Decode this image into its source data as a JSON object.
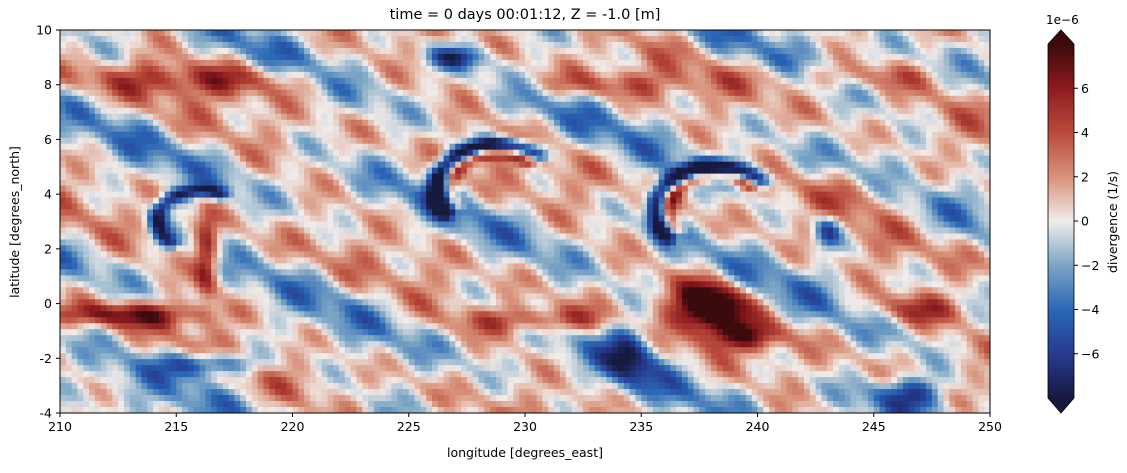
{
  "chart_data": {
    "type": "heatmap",
    "title": "time = 0 days 00:01:12, Z = -1.0 [m]",
    "xlabel": "longitude [degrees_east]",
    "ylabel": "latitude [degrees_north]",
    "xlim": [
      210,
      250
    ],
    "ylim": [
      -4,
      10
    ],
    "x_ticks": [
      "210",
      "215",
      "220",
      "225",
      "230",
      "235",
      "240",
      "245",
      "250"
    ],
    "y_ticks": [
      "-4",
      "-2",
      "0",
      "2",
      "4",
      "6",
      "8",
      "10"
    ],
    "colorbar": {
      "label": "divergence (1/s)",
      "scale_label": "1e−6",
      "range": [
        -8,
        8
      ],
      "ticks": [
        "−6",
        "−4",
        "−2",
        "0",
        "2",
        "4",
        "6"
      ],
      "extend": "both",
      "colormap": "balance",
      "low_color": "#161a3f",
      "high_color": "#3b0a0c"
    },
    "grid": false,
    "dominant_features": [
      {
        "name": "strong convergence band",
        "lon": [
          225,
          228
        ],
        "lat": [
          2,
          6
        ],
        "value": -8
      },
      {
        "name": "strong convergence band",
        "lon": [
          234,
          236
        ],
        "lat": [
          1,
          6.5
        ],
        "value": -8
      },
      {
        "name": "divergence maximum",
        "lon": [
          237,
          239.5
        ],
        "lat": [
          -1,
          1
        ],
        "value": 8
      },
      {
        "name": "divergence band",
        "lon": [
          210,
          217
        ],
        "lat": [
          -0.8,
          0.2
        ],
        "value": 5
      }
    ]
  }
}
